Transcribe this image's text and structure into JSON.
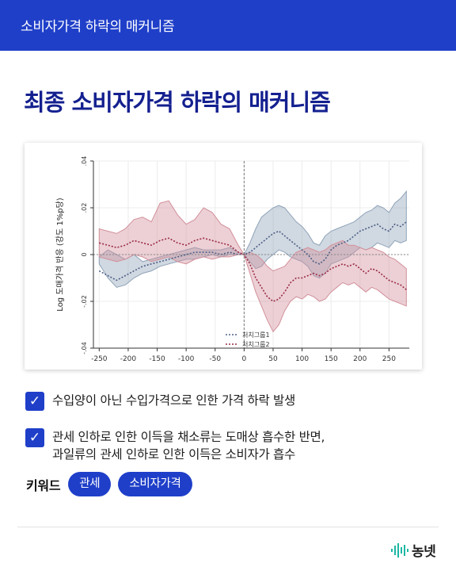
{
  "header": {
    "title": "소비자가격 하락의 매커니즘"
  },
  "headline": "최종 소비자가격 하락의 매커니즘",
  "chart_data": {
    "type": "area",
    "ylabel": "Log 도매가격 반응 (강도 1%p당)",
    "xlabel": "",
    "xlim": [
      -260,
      285
    ],
    "ylim": [
      -0.04,
      0.04
    ],
    "xticks": [
      "-250",
      "-200",
      "-150",
      "-100",
      "-50",
      "0",
      "50",
      "100",
      "150",
      "200",
      "250"
    ],
    "yticks": [
      ".04",
      ".02",
      "0",
      "-.02",
      "-.04"
    ],
    "legend": "bottom-center",
    "series": [
      {
        "name": "처치그룹1",
        "color": "#8fa3b8",
        "x": [
          -250,
          -235,
          -220,
          -205,
          -190,
          -175,
          -160,
          -145,
          -130,
          -115,
          -100,
          -85,
          -70,
          -55,
          -40,
          -25,
          -10,
          0,
          10,
          20,
          30,
          40,
          50,
          60,
          70,
          80,
          90,
          100,
          110,
          120,
          130,
          140,
          150,
          160,
          170,
          180,
          190,
          200,
          210,
          220,
          230,
          240,
          250,
          260,
          270,
          280
        ],
        "lower": [
          -0.004,
          -0.01,
          -0.014,
          -0.013,
          -0.01,
          -0.008,
          -0.007,
          -0.005,
          -0.004,
          -0.003,
          -0.002,
          -0.002,
          -0.001,
          0.0,
          -0.001,
          0.0,
          0.0,
          0.0,
          -0.003,
          -0.006,
          -0.005,
          -0.002,
          0.0,
          0.002,
          0.001,
          -0.001,
          -0.002,
          -0.003,
          -0.005,
          -0.009,
          -0.01,
          -0.008,
          -0.004,
          -0.003,
          -0.002,
          -0.001,
          0.001,
          0.003,
          0.002,
          0.003,
          0.005,
          0.004,
          0.003,
          0.006,
          0.005,
          0.006
        ],
        "mid": [
          -0.007,
          -0.009,
          -0.011,
          -0.009,
          -0.007,
          -0.005,
          -0.004,
          -0.003,
          -0.002,
          -0.001,
          0.0,
          0.001,
          0.001,
          0.001,
          0.0,
          0.001,
          0.0,
          0.0,
          0.001,
          0.003,
          0.005,
          0.007,
          0.009,
          0.01,
          0.008,
          0.006,
          0.004,
          0.002,
          0.0,
          -0.003,
          -0.004,
          -0.002,
          0.002,
          0.004,
          0.005,
          0.006,
          0.008,
          0.01,
          0.011,
          0.012,
          0.013,
          0.011,
          0.01,
          0.013,
          0.012,
          0.014
        ],
        "upper": [
          -0.001,
          0.002,
          0.0,
          -0.002,
          0.0,
          -0.003,
          -0.002,
          -0.001,
          0.0,
          0.001,
          0.002,
          0.003,
          0.002,
          0.002,
          0.002,
          0.003,
          0.001,
          0.0,
          0.005,
          0.011,
          0.016,
          0.018,
          0.02,
          0.021,
          0.02,
          0.017,
          0.014,
          0.012,
          0.009,
          0.005,
          0.004,
          0.008,
          0.01,
          0.011,
          0.012,
          0.013,
          0.014,
          0.016,
          0.018,
          0.019,
          0.021,
          0.02,
          0.018,
          0.022,
          0.024,
          0.027
        ]
      },
      {
        "name": "처치그룹2",
        "color": "#d2909b",
        "x": [
          -250,
          -235,
          -220,
          -205,
          -190,
          -175,
          -160,
          -145,
          -130,
          -115,
          -100,
          -85,
          -70,
          -55,
          -40,
          -25,
          -10,
          0,
          10,
          20,
          30,
          40,
          50,
          60,
          70,
          80,
          90,
          100,
          110,
          120,
          130,
          140,
          150,
          160,
          170,
          180,
          190,
          200,
          210,
          220,
          230,
          240,
          250,
          260,
          270,
          280
        ],
        "lower": [
          -0.001,
          -0.002,
          -0.003,
          -0.002,
          0.0,
          -0.001,
          -0.003,
          -0.002,
          -0.001,
          -0.003,
          -0.004,
          -0.002,
          -0.001,
          -0.002,
          -0.001,
          -0.001,
          0.0,
          0.0,
          -0.008,
          -0.016,
          -0.022,
          -0.028,
          -0.033,
          -0.03,
          -0.024,
          -0.02,
          -0.018,
          -0.019,
          -0.017,
          -0.018,
          -0.02,
          -0.019,
          -0.016,
          -0.014,
          -0.012,
          -0.013,
          -0.012,
          -0.014,
          -0.016,
          -0.014,
          -0.015,
          -0.017,
          -0.019,
          -0.02,
          -0.021,
          -0.022
        ],
        "mid": [
          0.005,
          0.004,
          0.003,
          0.004,
          0.006,
          0.005,
          0.004,
          0.006,
          0.007,
          0.005,
          0.004,
          0.006,
          0.007,
          0.006,
          0.005,
          0.004,
          0.001,
          0.0,
          -0.004,
          -0.01,
          -0.014,
          -0.018,
          -0.02,
          -0.019,
          -0.016,
          -0.012,
          -0.01,
          -0.01,
          -0.009,
          -0.008,
          -0.009,
          -0.008,
          -0.006,
          -0.005,
          -0.004,
          -0.005,
          -0.004,
          -0.006,
          -0.008,
          -0.006,
          -0.007,
          -0.009,
          -0.011,
          -0.012,
          -0.013,
          -0.015
        ],
        "upper": [
          0.011,
          0.01,
          0.009,
          0.011,
          0.015,
          0.016,
          0.014,
          0.022,
          0.023,
          0.017,
          0.013,
          0.015,
          0.02,
          0.018,
          0.013,
          0.011,
          0.004,
          0.0,
          0.001,
          0.0,
          -0.002,
          -0.005,
          -0.007,
          -0.006,
          -0.005,
          -0.002,
          0.001,
          0.002,
          0.003,
          0.002,
          0.001,
          0.002,
          0.004,
          0.005,
          0.006,
          0.004,
          0.004,
          0.003,
          0.002,
          0.003,
          0.002,
          0.001,
          -0.001,
          -0.002,
          -0.004,
          -0.006
        ]
      }
    ]
  },
  "checks": [
    {
      "lines": [
        "수입양이 아닌 수입가격으로 인한 가격 하락 발생"
      ]
    },
    {
      "lines": [
        "관세 인하로 인한 이득을 채소류는 도매상 흡수한 반면,",
        "과일류의 관세 인하로 인한 이득은 소비자가 흡수"
      ]
    }
  ],
  "keywords": {
    "label": "키워드",
    "tags": [
      "관세",
      "소비자가격"
    ]
  },
  "logo": {
    "text": "농넷",
    "color": "#1bb7a3"
  }
}
